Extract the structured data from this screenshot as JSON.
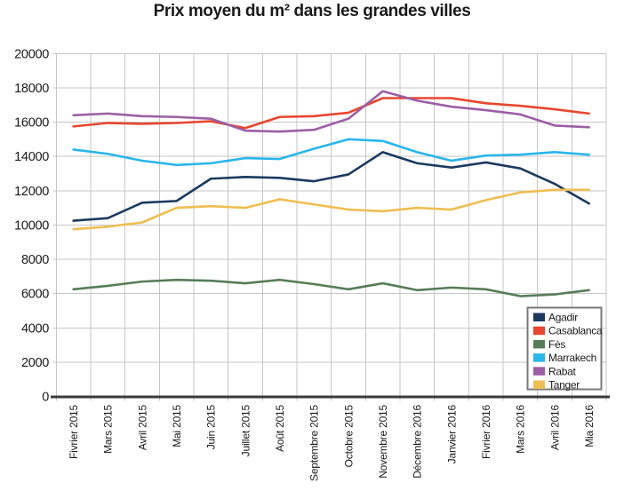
{
  "chart_data": {
    "type": "line",
    "title": "Prix moyen du m² dans les grandes villes",
    "xlabel": "",
    "ylabel": "",
    "ylim": [
      0,
      20000
    ],
    "yticks": [
      0,
      2000,
      4000,
      6000,
      8000,
      10000,
      12000,
      14000,
      16000,
      18000,
      20000
    ],
    "grid": true,
    "legend_position": "inside-bottom-right",
    "categories": [
      "Fivrier 2015",
      "Mars 2015",
      "Avril 2015",
      "Mai 2015",
      "Juin 2015",
      "Juillet 2015",
      "Août 2015",
      "Septembre 2015",
      "Octobre 2015",
      "Novembre 2015",
      "Décembre 2016",
      "Janvier 2016",
      "Fivrier 2016",
      "Mars 2016",
      "Avril 2016",
      "Mia 2016"
    ],
    "series": [
      {
        "name": "Agadir",
        "color": "#1c3a5f",
        "values": [
          10250,
          10400,
          11300,
          11400,
          12700,
          12800,
          12750,
          12550,
          12950,
          14250,
          13600,
          13350,
          13650,
          13300,
          12400,
          11250
        ]
      },
      {
        "name": "Casablanca",
        "color": "#e8462f",
        "values": [
          15750,
          15950,
          15900,
          15950,
          16050,
          15650,
          16300,
          16350,
          16550,
          17400,
          17400,
          17400,
          17100,
          16950,
          16750,
          16500
        ]
      },
      {
        "name": "Fès",
        "color": "#567d57",
        "values": [
          6250,
          6450,
          6700,
          6800,
          6750,
          6600,
          6800,
          6550,
          6250,
          6600,
          6200,
          6350,
          6250,
          5850,
          5950,
          6200
        ]
      },
      {
        "name": "Marrakech",
        "color": "#29b6ea",
        "values": [
          14400,
          14150,
          13750,
          13500,
          13600,
          13900,
          13850,
          14450,
          15000,
          14900,
          14250,
          13750,
          14050,
          14100,
          14250,
          14100
        ]
      },
      {
        "name": "Rabat",
        "color": "#9c5fa5",
        "values": [
          16400,
          16500,
          16350,
          16300,
          16200,
          15500,
          15450,
          15550,
          16200,
          17800,
          17250,
          16900,
          16700,
          16450,
          15800,
          15700
        ]
      },
      {
        "name": "Tanger",
        "color": "#efbe53",
        "values": [
          9750,
          9900,
          10150,
          11000,
          11100,
          11000,
          11500,
          11200,
          10900,
          10800,
          11000,
          10900,
          11450,
          11900,
          12050,
          12050
        ]
      }
    ],
    "colors": {
      "background": "#ffffff",
      "grid": "#c6c6c6",
      "axis": "#3a3a3a",
      "tick": "#8f8f8f",
      "text": "#1a1a1a",
      "legend_border": "#7a7a7a",
      "legend_background": "#ffffff"
    }
  }
}
